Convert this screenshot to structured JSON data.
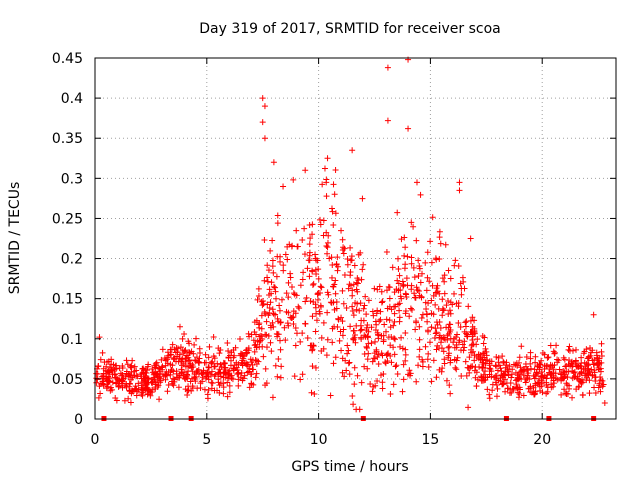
{
  "chart_data": {
    "type": "scatter",
    "title": "Day 319 of 2017, SRMTID for receiver scoa",
    "xlabel": "GPS time / hours",
    "ylabel": "SRMTID / TECUs",
    "xlim": [
      0,
      23.3
    ],
    "ylim": [
      0,
      0.45
    ],
    "xticks": [
      0,
      5,
      10,
      15,
      20
    ],
    "yticks": [
      0,
      0.05,
      0.1,
      0.15,
      0.2,
      0.25,
      0.3,
      0.35,
      0.4,
      0.45
    ],
    "xtick_labels": [
      "0",
      "5",
      "10",
      "15",
      "20"
    ],
    "ytick_labels": [
      "0",
      "0.05",
      "0.1",
      "0.15",
      "0.2",
      "0.25",
      "0.3",
      "0.35",
      "0.4",
      "0.45"
    ],
    "grid": true,
    "marker": "+",
    "color": "#ff0000",
    "baseline_markers_x": [
      0.4,
      3.4,
      4.3,
      12.0,
      18.4,
      20.3,
      22.3
    ],
    "series": [
      {
        "name": "SRMTID",
        "profile_hours": [
          0,
          2.5,
          3.5,
          5,
          7,
          7.6,
          8.5,
          10,
          10.5,
          11.5,
          12.5,
          13.5,
          14.2,
          15,
          16,
          16.6,
          17,
          18,
          23
        ],
        "profile_mean_tecu": [
          0.055,
          0.045,
          0.07,
          0.06,
          0.07,
          0.13,
          0.14,
          0.15,
          0.18,
          0.13,
          0.09,
          0.12,
          0.15,
          0.12,
          0.11,
          0.1,
          0.08,
          0.055,
          0.06
        ],
        "notable_points": [
          {
            "x": 7.5,
            "y": 0.4
          },
          {
            "x": 7.6,
            "y": 0.39
          },
          {
            "x": 7.5,
            "y": 0.37
          },
          {
            "x": 7.6,
            "y": 0.35
          },
          {
            "x": 8.0,
            "y": 0.32
          },
          {
            "x": 9.4,
            "y": 0.31
          },
          {
            "x": 10.4,
            "y": 0.325
          },
          {
            "x": 11.5,
            "y": 0.335
          },
          {
            "x": 13.1,
            "y": 0.438
          },
          {
            "x": 13.1,
            "y": 0.372
          },
          {
            "x": 14.0,
            "y": 0.448
          },
          {
            "x": 14.0,
            "y": 0.362
          },
          {
            "x": 14.4,
            "y": 0.295
          },
          {
            "x": 16.3,
            "y": 0.295
          },
          {
            "x": 16.3,
            "y": 0.285
          },
          {
            "x": 16.8,
            "y": 0.225
          },
          {
            "x": 22.3,
            "y": 0.13
          },
          {
            "x": 0.2,
            "y": 0.102
          },
          {
            "x": 3.8,
            "y": 0.115
          },
          {
            "x": 22.8,
            "y": 0.02
          }
        ]
      }
    ]
  }
}
